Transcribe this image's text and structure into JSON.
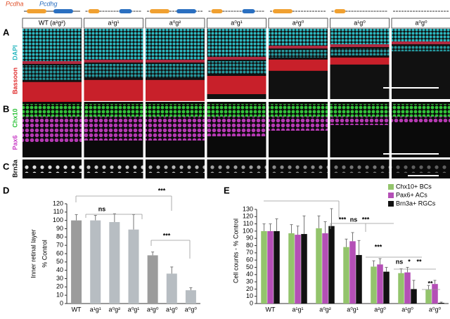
{
  "panel_labels": [
    "A",
    "B",
    "C",
    "D",
    "E"
  ],
  "genes": [
    "Pcdha",
    "Pcdhg"
  ],
  "genotypes": [
    "WT (a²g²)",
    "a¹g¹",
    "a⁰g²",
    "a⁰g¹",
    "a²g⁰",
    "a¹g⁰",
    "a⁰g⁰"
  ],
  "stains": {
    "A": [
      "DAPI",
      "Bassoon"
    ],
    "B": [
      "Chx10",
      "Pax6"
    ],
    "C": [
      "Brn3a"
    ]
  },
  "chart_data": [
    {
      "type": "bar",
      "y_label": [
        "Inner retinal layer",
        "% Control"
      ],
      "categories": [
        "WT",
        "a¹g¹",
        "a⁰g²",
        "a⁰g¹",
        "a²g⁰",
        "a¹g⁰",
        "a⁰g⁰"
      ],
      "values": [
        100,
        100,
        98,
        89,
        58,
        36,
        16
      ],
      "errors": [
        7,
        6,
        10,
        18,
        4,
        8,
        3
      ],
      "colors": [
        "#9c9c9c",
        "#b7bdc2",
        "#b7bdc2",
        "#b7bdc2",
        "#9c9c9c",
        "#b7bdc2",
        "#b7bdc2"
      ],
      "ylim": [
        0,
        120
      ],
      "yticks": [
        0,
        10,
        20,
        30,
        40,
        50,
        60,
        70,
        80,
        90,
        100,
        110,
        120
      ],
      "annotations": [
        "***",
        "ns",
        "***"
      ]
    },
    {
      "type": "grouped_bar",
      "y_label": "Cell counts - % Control",
      "legend": "top-right",
      "categories": [
        "WT",
        "a¹g¹",
        "a⁰g²",
        "a⁰g¹",
        "a²g⁰",
        "a¹g⁰",
        "a⁰g⁰"
      ],
      "series": [
        {
          "name": "Chx10+ BCs",
          "color": "#93c46c",
          "values": [
            100,
            97,
            104,
            78,
            51,
            42,
            19
          ],
          "errors": [
            10,
            12,
            17,
            11,
            8,
            6,
            6
          ]
        },
        {
          "name": "Pax6+ ACs",
          "color": "#b44fb6",
          "values": [
            100,
            95,
            97,
            86,
            54,
            43,
            27
          ],
          "errors": [
            10,
            12,
            16,
            12,
            8,
            7,
            5
          ]
        },
        {
          "name": "Brn3a+ RGCs",
          "color": "#111111",
          "values": [
            100,
            96,
            107,
            67,
            44,
            20,
            1
          ],
          "errors": [
            17,
            25,
            24,
            20,
            6,
            12,
            1
          ]
        }
      ],
      "ylim": [
        0,
        130
      ],
      "yticks": [
        0,
        10,
        20,
        30,
        40,
        50,
        60,
        70,
        80,
        90,
        100,
        110,
        120,
        130
      ],
      "annotations": [
        "***",
        "ns",
        "***",
        "***",
        "ns",
        "*",
        "**",
        "**"
      ]
    }
  ]
}
